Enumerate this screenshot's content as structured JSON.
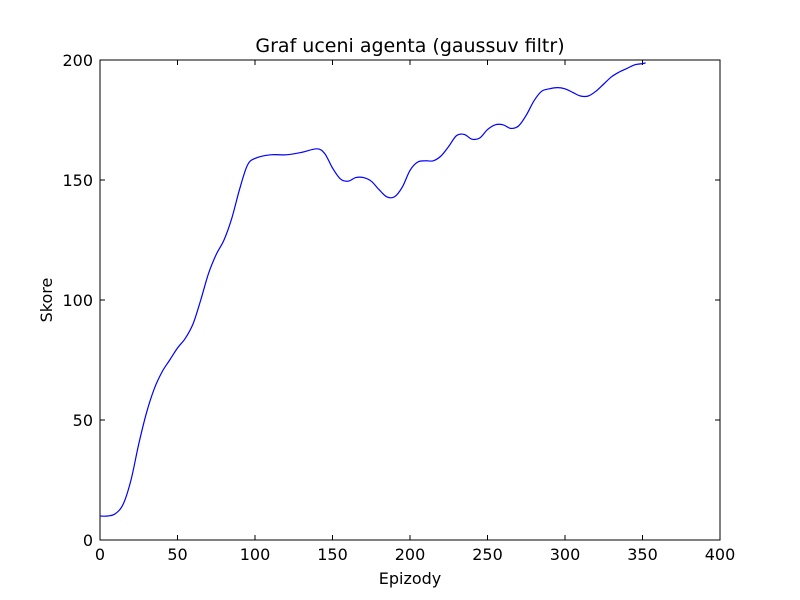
{
  "chart_data": {
    "type": "line",
    "title": "Graf uceni agenta (gaussuv filtr)",
    "xlabel": "Epizody",
    "ylabel": "Skore",
    "xlim": [
      0,
      400
    ],
    "ylim": [
      0,
      200
    ],
    "xticks": [
      0,
      50,
      100,
      150,
      200,
      250,
      300,
      350,
      400
    ],
    "yticks": [
      0,
      50,
      100,
      150,
      200
    ],
    "grid": false,
    "legend": "none",
    "colors": {
      "line": "#0000ff",
      "axes": "#000000",
      "background": "#ffffff"
    },
    "series": [
      {
        "points": [
          [
            0,
            10
          ],
          [
            5,
            10
          ],
          [
            10,
            11
          ],
          [
            15,
            15
          ],
          [
            20,
            25
          ],
          [
            25,
            40
          ],
          [
            30,
            53
          ],
          [
            35,
            63
          ],
          [
            40,
            70
          ],
          [
            45,
            75
          ],
          [
            50,
            80
          ],
          [
            55,
            84
          ],
          [
            60,
            90
          ],
          [
            65,
            100
          ],
          [
            70,
            111
          ],
          [
            75,
            119
          ],
          [
            80,
            125
          ],
          [
            85,
            134
          ],
          [
            90,
            146
          ],
          [
            95,
            156
          ],
          [
            100,
            159
          ],
          [
            110,
            160.5
          ],
          [
            120,
            160.5
          ],
          [
            130,
            161.5
          ],
          [
            140,
            163
          ],
          [
            145,
            161
          ],
          [
            150,
            155
          ],
          [
            155,
            150.5
          ],
          [
            160,
            149.5
          ],
          [
            165,
            151
          ],
          [
            170,
            151
          ],
          [
            175,
            149.5
          ],
          [
            180,
            146
          ],
          [
            185,
            143
          ],
          [
            190,
            143
          ],
          [
            195,
            147
          ],
          [
            200,
            154
          ],
          [
            205,
            157.5
          ],
          [
            210,
            158
          ],
          [
            215,
            158
          ],
          [
            220,
            160
          ],
          [
            225,
            164
          ],
          [
            230,
            168.5
          ],
          [
            235,
            169
          ],
          [
            240,
            167
          ],
          [
            245,
            167.5
          ],
          [
            250,
            171
          ],
          [
            255,
            173
          ],
          [
            260,
            173
          ],
          [
            265,
            171.5
          ],
          [
            270,
            172.5
          ],
          [
            275,
            177
          ],
          [
            280,
            183
          ],
          [
            285,
            187
          ],
          [
            290,
            188
          ],
          [
            295,
            188.5
          ],
          [
            300,
            188
          ],
          [
            305,
            186.5
          ],
          [
            310,
            185
          ],
          [
            315,
            185
          ],
          [
            320,
            187
          ],
          [
            325,
            190
          ],
          [
            330,
            193
          ],
          [
            335,
            195
          ],
          [
            340,
            196.5
          ],
          [
            345,
            198
          ],
          [
            350,
            198.5
          ],
          [
            352,
            198.8
          ]
        ]
      }
    ]
  }
}
